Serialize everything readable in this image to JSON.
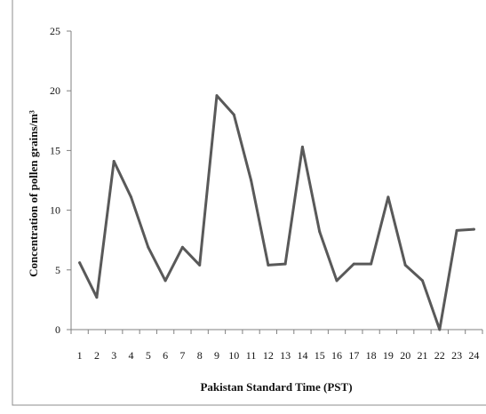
{
  "chart_data": {
    "type": "line",
    "title": "",
    "xlabel": "Pakistan Standard Time (PST)",
    "ylabel": "Concentration of  pollen grains/m³",
    "x": [
      "1",
      "2",
      "3",
      "4",
      "5",
      "6",
      "7",
      "8",
      "9",
      "10",
      "11",
      "12",
      "13",
      "14",
      "15",
      "16",
      "17",
      "18",
      "19",
      "20",
      "21",
      "22",
      "23",
      "24"
    ],
    "y_ticks": [
      "0",
      "5",
      "10",
      "15",
      "20",
      "25"
    ],
    "ylim": [
      0,
      25
    ],
    "grid": false,
    "legend": "none",
    "series": [
      {
        "values": [
          5.6,
          2.7,
          14.1,
          11.1,
          6.9,
          4.1,
          6.9,
          5.4,
          19.6,
          18.0,
          12.5,
          5.4,
          5.5,
          15.3,
          8.2,
          4.1,
          5.5,
          5.5,
          11.1,
          5.4,
          4.1,
          0,
          8.3,
          8.4
        ],
        "color": "#595959"
      }
    ]
  }
}
